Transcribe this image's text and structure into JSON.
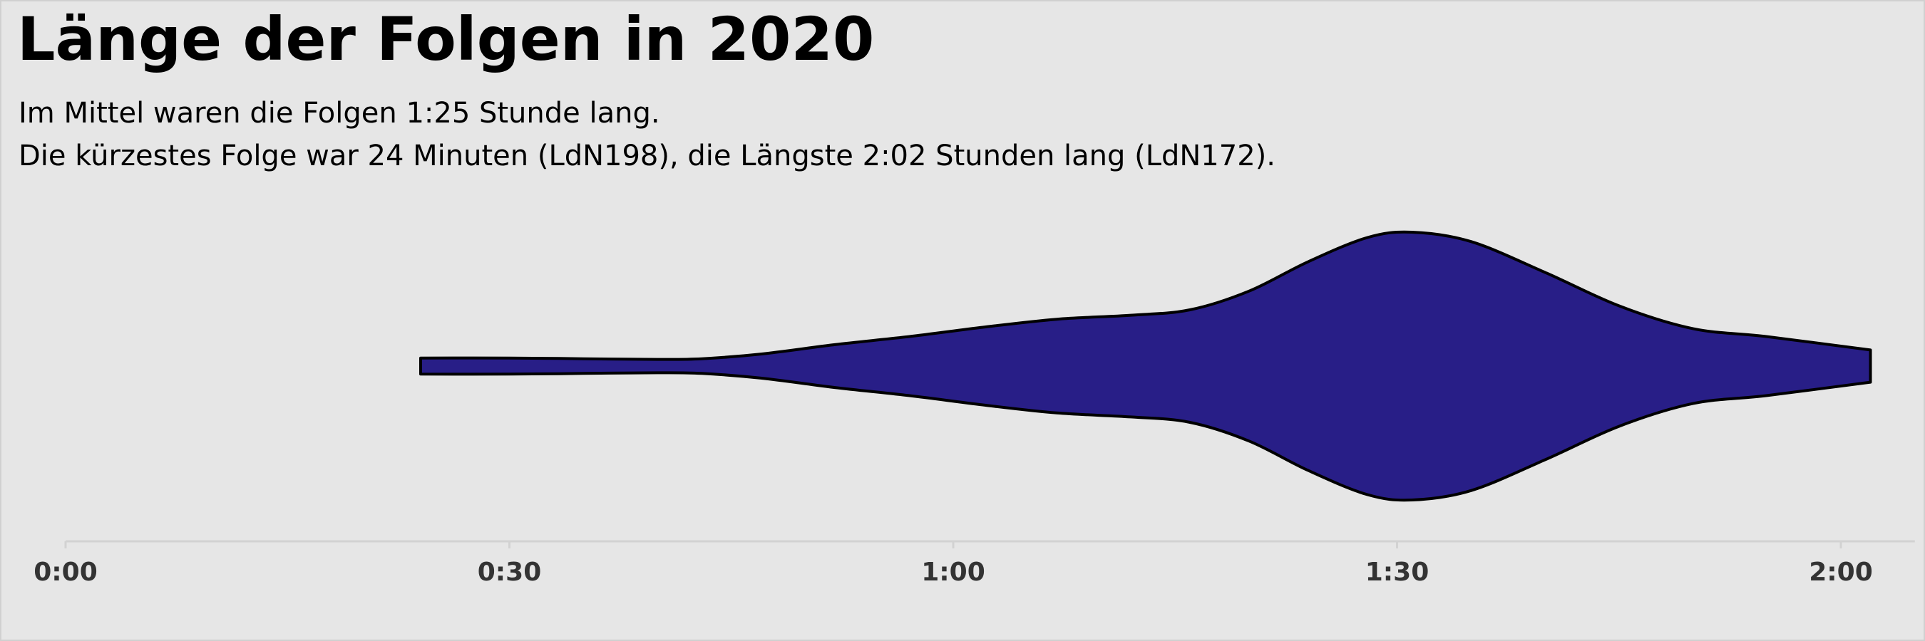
{
  "chart_data": {
    "type": "violin",
    "title": "Länge der Folgen in 2020",
    "subtitle": [
      "Im Mittel waren die Folgen 1:25 Stunde lang.",
      "Die kürzestes Folge war 24 Minuten (LdN198), die Längste 2:02 Stunden lang (LdN172)."
    ],
    "xlabel": "",
    "ylabel": "",
    "x_unit": "minutes",
    "xlim": [
      0,
      125
    ],
    "x_ticks": [
      {
        "value": 0,
        "label": "0:00"
      },
      {
        "value": 30,
        "label": "0:30"
      },
      {
        "value": 60,
        "label": "1:00"
      },
      {
        "value": 90,
        "label": "1:30"
      },
      {
        "value": 120,
        "label": "2:00"
      }
    ],
    "min_minutes": 24,
    "max_minutes": 122,
    "density_profile": [
      {
        "x": 24,
        "density": 0.06
      },
      {
        "x": 30,
        "density": 0.06
      },
      {
        "x": 35,
        "density": 0.055
      },
      {
        "x": 40,
        "density": 0.05
      },
      {
        "x": 43,
        "density": 0.055
      },
      {
        "x": 47,
        "density": 0.09
      },
      {
        "x": 52,
        "density": 0.16
      },
      {
        "x": 57,
        "density": 0.22
      },
      {
        "x": 62,
        "density": 0.29
      },
      {
        "x": 67,
        "density": 0.35
      },
      {
        "x": 72,
        "density": 0.38
      },
      {
        "x": 76,
        "density": 0.42
      },
      {
        "x": 80,
        "density": 0.56
      },
      {
        "x": 84,
        "density": 0.78
      },
      {
        "x": 88,
        "density": 0.96
      },
      {
        "x": 91,
        "density": 1.0
      },
      {
        "x": 95,
        "density": 0.93
      },
      {
        "x": 100,
        "density": 0.7
      },
      {
        "x": 105,
        "density": 0.45
      },
      {
        "x": 110,
        "density": 0.28
      },
      {
        "x": 115,
        "density": 0.22
      },
      {
        "x": 122,
        "density": 0.12
      }
    ],
    "fill_color": "#281e87",
    "outline_color": "#000000",
    "background_color": "#e6e6e6",
    "axis_color": "#d2d2d2",
    "grid": false,
    "legend": "none"
  }
}
